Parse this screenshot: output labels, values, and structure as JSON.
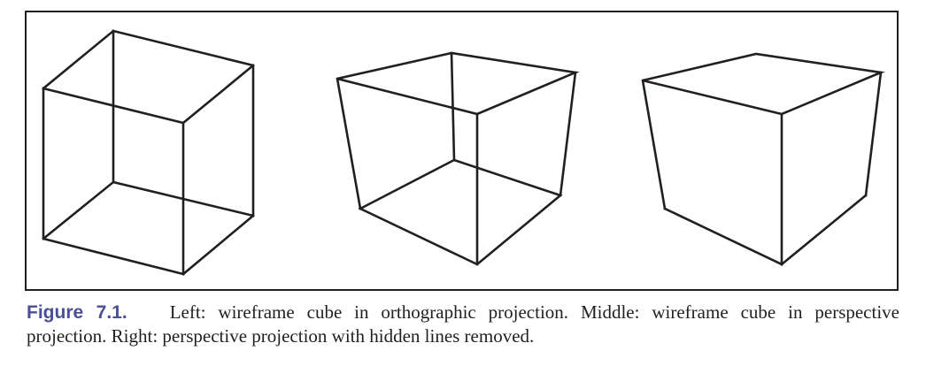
{
  "figure": {
    "panels": [
      {
        "name": "left",
        "description": "wireframe cube in orthographic projection"
      },
      {
        "name": "middle",
        "description": "wireframe cube in perspective projection"
      },
      {
        "name": "right",
        "description": "perspective projection with hidden lines removed"
      }
    ]
  },
  "caption": {
    "label": "Figure 7.1.",
    "text": "Left: wireframe cube in orthographic projection. Middle: wireframe cube in perspective projection. Right: perspective projection with hidden lines removed."
  },
  "colors": {
    "line": "#231f20",
    "caption_label": "#4a4f96"
  }
}
